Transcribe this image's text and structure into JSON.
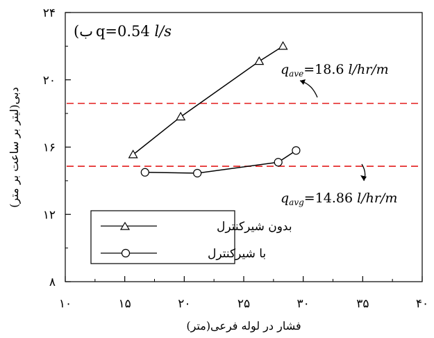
{
  "chart_data": {
    "type": "line",
    "panel_label": "(ب",
    "panel_title": "q=0.54 l/s",
    "title_prefix": "q=0.54 ",
    "title_unit": "l/s",
    "xlabel": "فشار در لوله فرعی(متر)",
    "ylabel": "دبی(لیتر بر ساعت بر متر)",
    "xlim": [
      10,
      40
    ],
    "ylim": [
      8,
      24
    ],
    "x_ticks": [
      10,
      15,
      20,
      25,
      30,
      35,
      40
    ],
    "x_tick_labels": [
      "۱۰",
      "۱۵",
      "۲۰",
      "۲۵",
      "۳۰",
      "۳۵",
      "۴۰"
    ],
    "y_ticks": [
      8,
      12,
      16,
      20,
      24
    ],
    "y_tick_labels": [
      "۸",
      "۱۲",
      "۱۶",
      "۲۰",
      "۲۴"
    ],
    "grid": false,
    "legend_position": "bottom-left",
    "series": [
      {
        "name": "بدون شیرکنترل",
        "marker": "triangle",
        "x": [
          15.7,
          19.7,
          26.3,
          28.3
        ],
        "y": [
          15.55,
          17.8,
          21.1,
          22.0
        ]
      },
      {
        "name": "با شیرکنترل",
        "marker": "circle",
        "x": [
          16.7,
          21.1,
          27.9,
          29.4
        ],
        "y": [
          14.5,
          14.45,
          15.1,
          15.8
        ]
      }
    ],
    "reference_lines": [
      {
        "y": 18.6,
        "label_q": "q",
        "label_sub": "ave",
        "label_rest": "=18.6 ",
        "label_unit": "l/hr/m",
        "color": "#e31b1b"
      },
      {
        "y": 14.86,
        "label_q": "q",
        "label_sub": "avg",
        "label_rest": "=14.86 ",
        "label_unit": "l/hr/m",
        "color": "#e31b1b"
      }
    ]
  }
}
